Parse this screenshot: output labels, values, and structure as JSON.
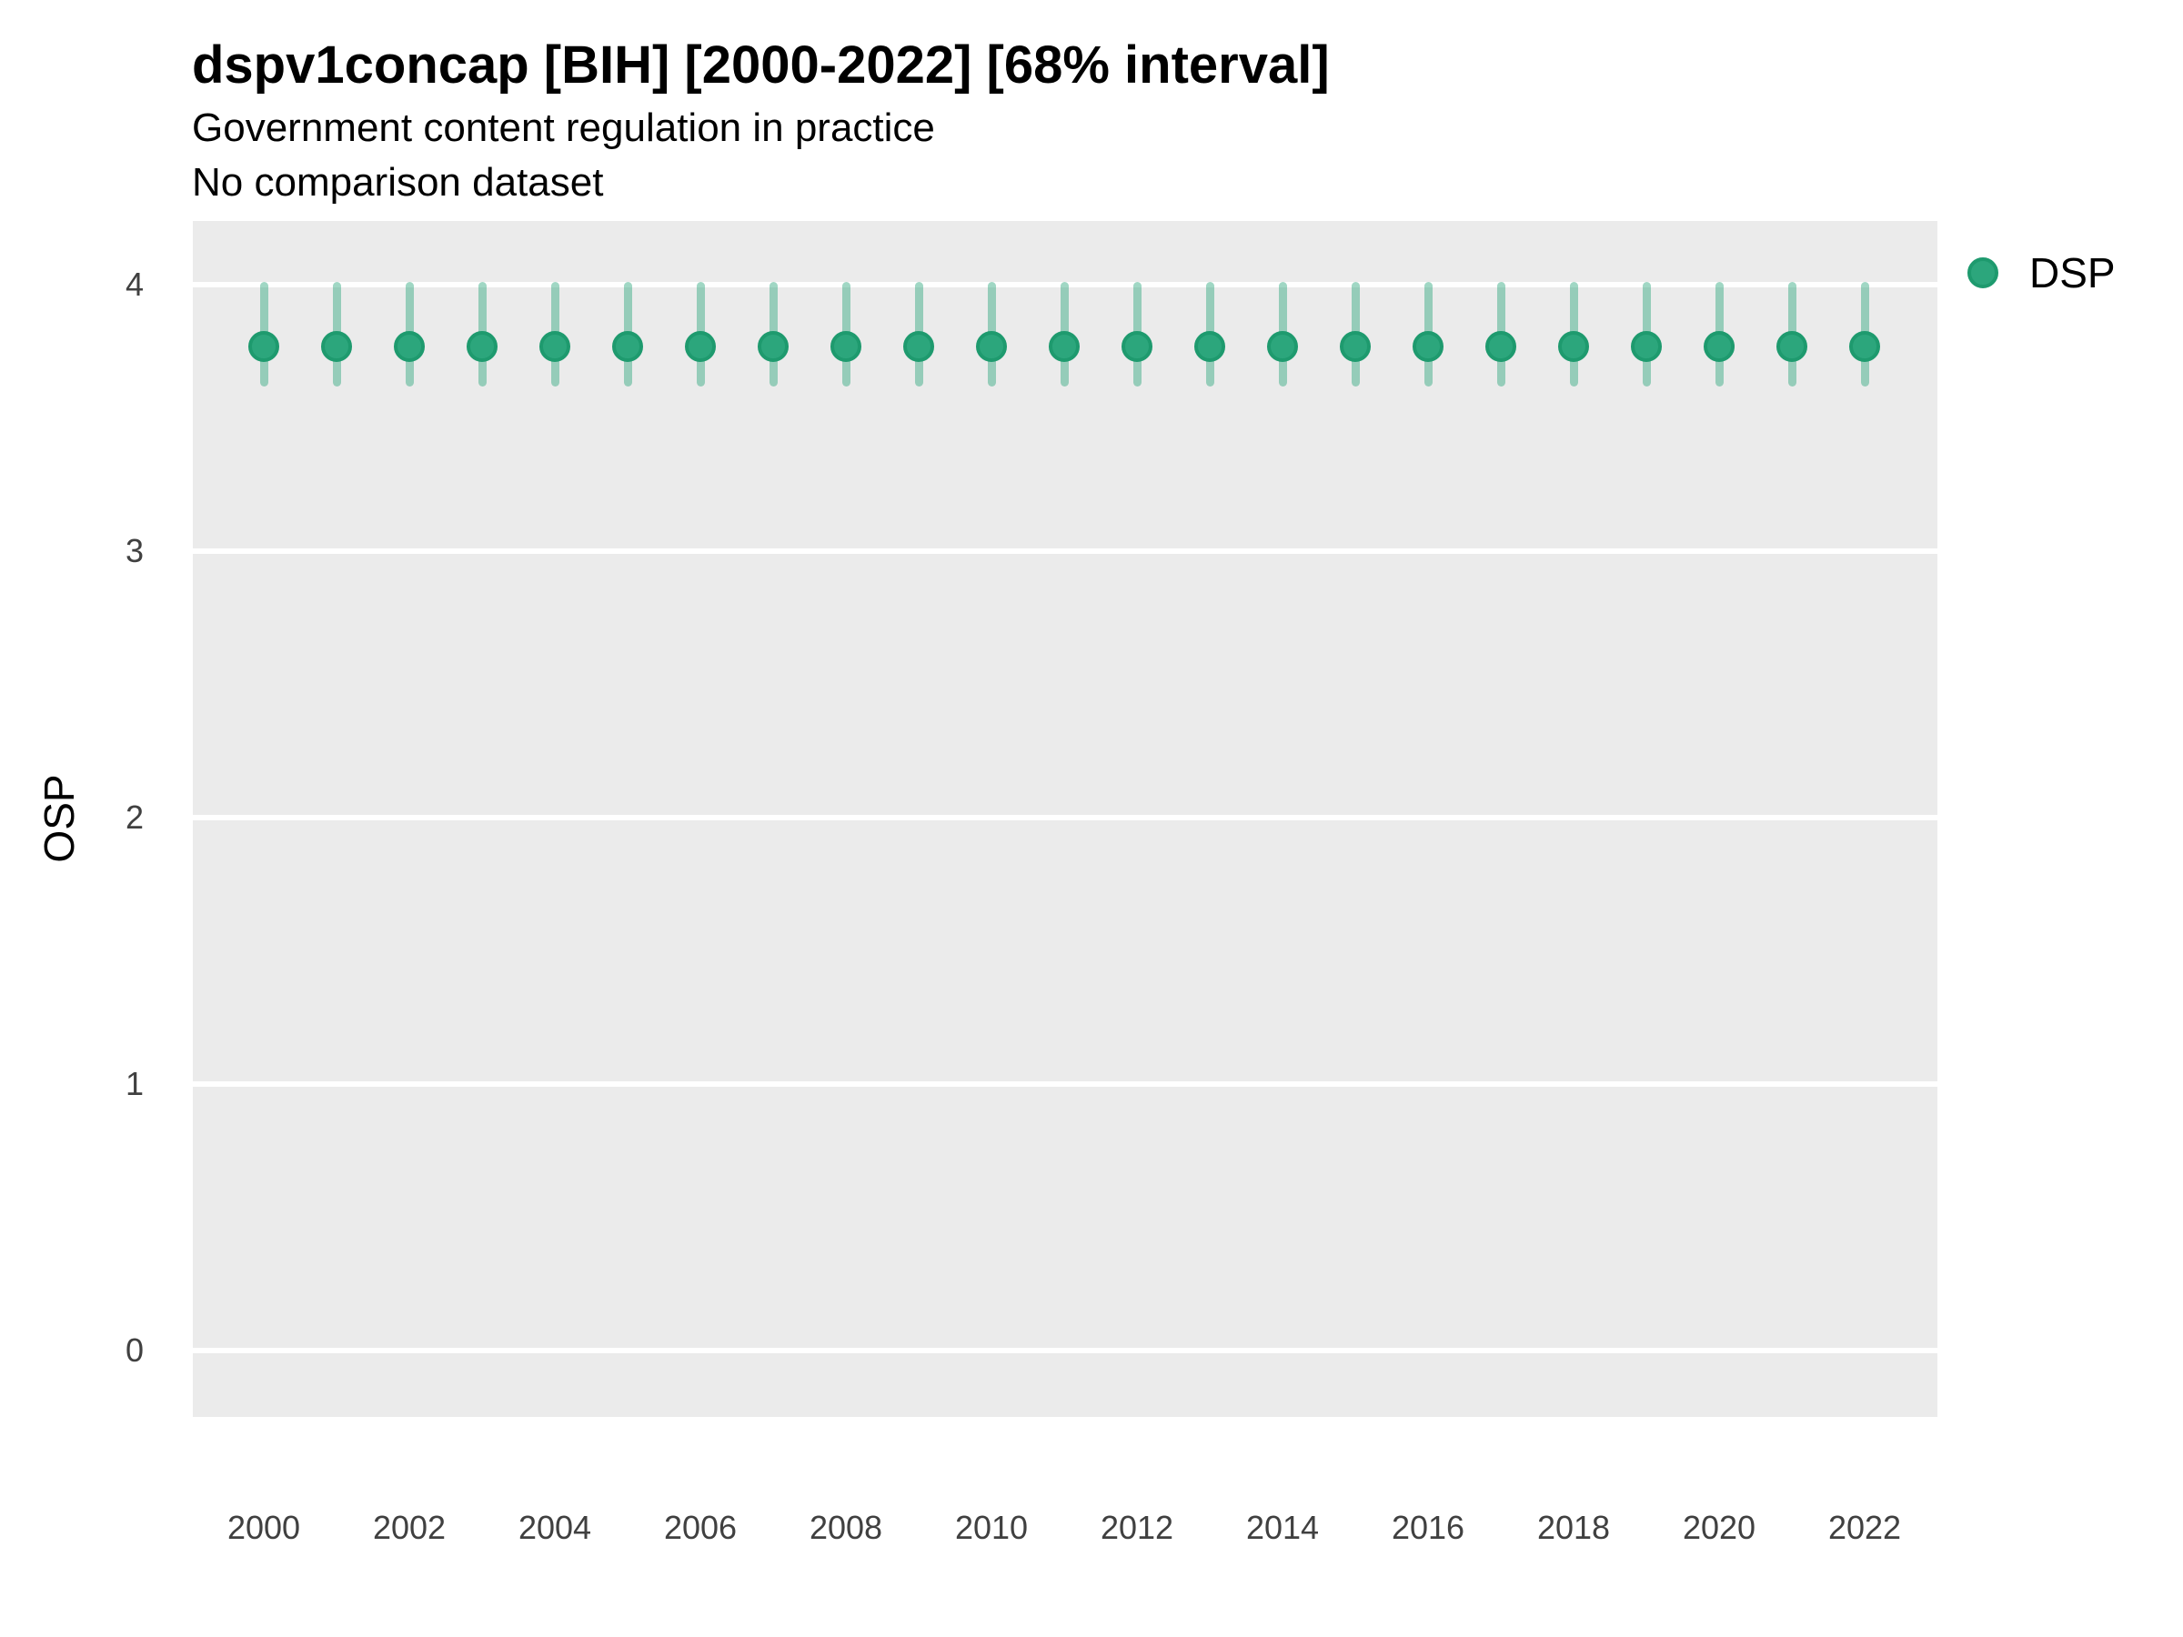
{
  "header": {
    "title": "dspv1concap [BIH] [2000-2022] [68% interval]",
    "subtitle1": "Government content regulation in practice",
    "subtitle2": "No comparison dataset"
  },
  "y_axis": {
    "label": "OSP",
    "tick_labels": [
      "4",
      "3",
      "2",
      "1",
      "0"
    ]
  },
  "x_axis": {
    "tick_labels": [
      "2000",
      "2002",
      "2004",
      "2006",
      "2008",
      "2010",
      "2012",
      "2014",
      "2016",
      "2018",
      "2020",
      "2022"
    ]
  },
  "legend": {
    "label": "DSP",
    "position": "right"
  },
  "colors": {
    "point_fill": "#2CA67C",
    "point_stroke": "#1E9A6E",
    "interval_bar": "rgba(44,166,124,0.45)",
    "panel_background": "#EBEBEB",
    "gridline": "#FFFFFF",
    "tick_text": "#404040"
  },
  "chart_data": {
    "type": "pointrange",
    "title": "dspv1concap [BIH] [2000-2022] [68% interval]",
    "subtitle": [
      "Government content regulation in practice",
      "No comparison dataset"
    ],
    "xlabel": "",
    "ylabel": "OSP",
    "interval_level": "68%",
    "grid": "horizontal-major-only",
    "legend_position": "right",
    "ylim": [
      -0.25,
      4.24
    ],
    "yticks": [
      4,
      3,
      2,
      1,
      0
    ],
    "xticks": [
      2000,
      2002,
      2004,
      2006,
      2008,
      2010,
      2012,
      2014,
      2016,
      2018,
      2020,
      2022
    ],
    "series": [
      {
        "name": "DSP",
        "x": [
          2000,
          2001,
          2002,
          2003,
          2004,
          2005,
          2006,
          2007,
          2008,
          2009,
          2010,
          2011,
          2012,
          2013,
          2014,
          2015,
          2016,
          2017,
          2018,
          2019,
          2020,
          2021,
          2022
        ],
        "y": [
          3.77,
          3.77,
          3.77,
          3.77,
          3.77,
          3.77,
          3.77,
          3.77,
          3.77,
          3.77,
          3.77,
          3.77,
          3.77,
          3.77,
          3.77,
          3.77,
          3.77,
          3.77,
          3.77,
          3.77,
          3.77,
          3.77,
          3.77
        ],
        "low": [
          3.62,
          3.62,
          3.62,
          3.62,
          3.62,
          3.62,
          3.62,
          3.62,
          3.62,
          3.62,
          3.62,
          3.62,
          3.62,
          3.62,
          3.62,
          3.62,
          3.62,
          3.62,
          3.62,
          3.62,
          3.62,
          3.62,
          3.62
        ],
        "high": [
          4.01,
          4.01,
          4.01,
          4.01,
          4.01,
          4.01,
          4.01,
          4.01,
          4.01,
          4.01,
          4.01,
          4.01,
          4.01,
          4.01,
          4.01,
          4.01,
          4.01,
          4.01,
          4.01,
          4.01,
          4.01,
          4.01,
          4.01
        ]
      }
    ]
  }
}
